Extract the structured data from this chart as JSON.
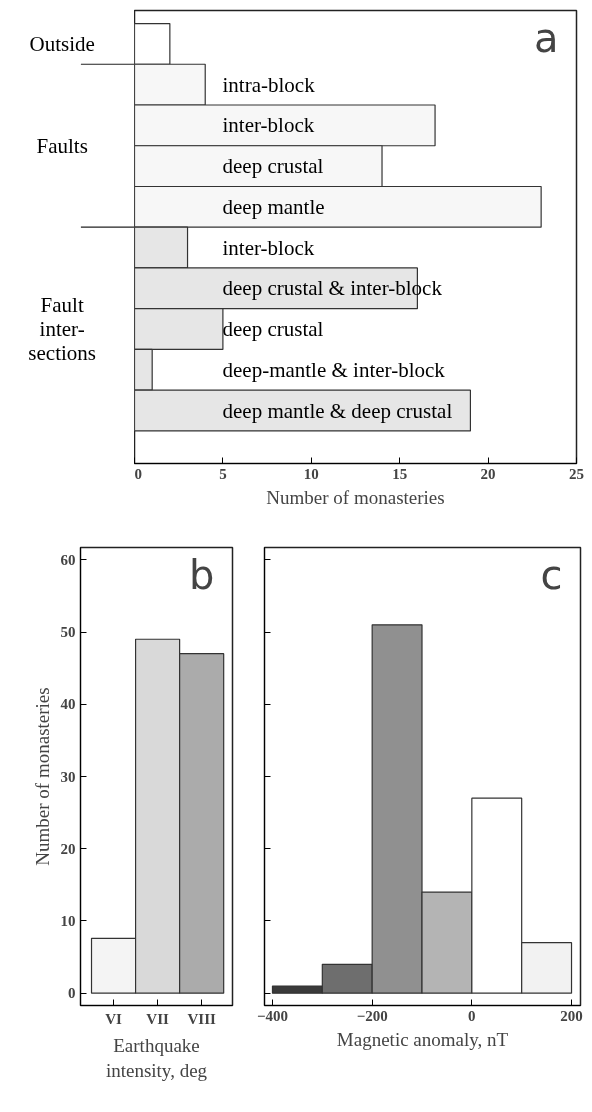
{
  "chart_data": [
    {
      "type": "bar",
      "orientation": "horizontal",
      "title": "a",
      "xlabel": "Number of monasteries",
      "categories": [
        null,
        "intra-block",
        "inter-block",
        "deep crustal",
        "deep mantle",
        "inter-block",
        "deep crustal & inter-block",
        "deep crustal",
        "deep-mantle & inter-block",
        "deep mantle & deep crustal"
      ],
      "values": [
        2,
        4,
        17,
        14,
        23,
        3,
        16,
        5,
        1,
        19
      ],
      "colors": [
        "#ffffff",
        "#f7f7f7",
        "#f7f7f7",
        "#f7f7f7",
        "#f7f7f7",
        "#e6e6e6",
        "#e6e6e6",
        "#e6e6e6",
        "#e6e6e6",
        "#e6e6e6"
      ],
      "xlim": [
        0,
        25
      ],
      "xticks": [
        0,
        5,
        10,
        15,
        20,
        25
      ],
      "annotations": [
        "Outside",
        "Faults",
        "Fault\ninter-\nsections"
      ],
      "tick_labels": "x"
    },
    {
      "type": "bar",
      "title": "b",
      "xlabel": "Earthquake\nintensity, deg",
      "ylabel": "Number of monasteries",
      "categories": [
        "VI",
        "VII",
        "VIII"
      ],
      "values": [
        7.6,
        49,
        47
      ],
      "colors": [
        "#f4f4f4",
        "#d9d9d9",
        "#ababab"
      ],
      "ylim": [
        -1.7,
        61.7
      ],
      "yticks": [
        0,
        10,
        20,
        30,
        40,
        50,
        60
      ]
    },
    {
      "type": "histogram",
      "title": "c",
      "xlabel": "Magnetic anomaly, nT",
      "bins": [
        -400,
        -300,
        -200,
        -100,
        0,
        100,
        200
      ],
      "values": [
        1,
        4,
        51,
        14,
        27,
        7
      ],
      "colors": [
        "#3a3a3a",
        "#6e6e6e",
        "#909090",
        "#b4b4b4",
        "#ffffff",
        "#f2f2f2"
      ],
      "xlim": [
        -416,
        218
      ],
      "xticks": [
        -400,
        -200,
        0,
        200
      ],
      "ylim": [
        -1.7,
        61.7
      ],
      "yticks": [
        0,
        10,
        20,
        30,
        40,
        50,
        60
      ],
      "tick_labels": "x"
    }
  ]
}
